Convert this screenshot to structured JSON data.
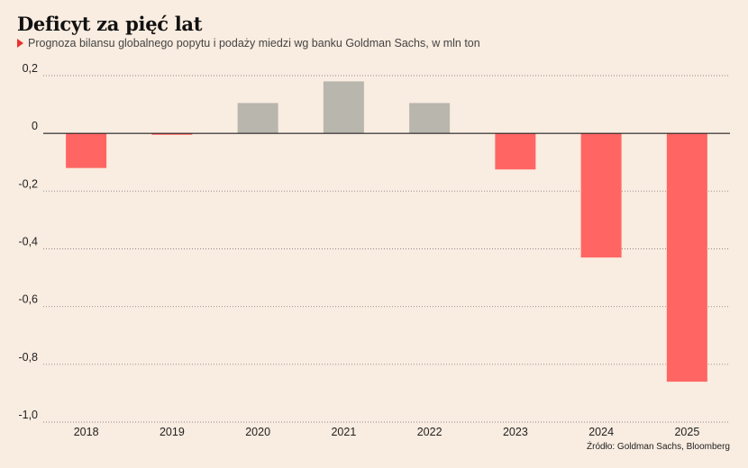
{
  "header": {
    "title": "Deficyt za pięć lat",
    "subtitle": "Prognoza bilansu globalnego popytu i podaży miedzi wg banku Goldman Sachs, w mln ton"
  },
  "footer": {
    "source": "Źródło: Goldman Sachs, Bloomberg"
  },
  "chart_data": {
    "type": "bar",
    "categories": [
      "2018",
      "2019",
      "2020",
      "2021",
      "2022",
      "2023",
      "2024",
      "2025"
    ],
    "values": [
      -0.12,
      -0.005,
      0.105,
      0.18,
      0.105,
      -0.125,
      -0.43,
      -0.86
    ],
    "ylim": [
      -1.0,
      0.2
    ],
    "yticks": [
      0.2,
      0,
      -0.2,
      -0.4,
      -0.6,
      -0.8,
      -1.0
    ],
    "ytick_labels": [
      "0,2",
      "0",
      "-0,2",
      "-0,4",
      "-0,6",
      "-0,8",
      "-1,0"
    ],
    "grid": true,
    "colors": {
      "negative": "#ff6663",
      "positive": "#b8b6ad",
      "grid": "#8a8a8a",
      "zero_line": "#222222"
    }
  }
}
